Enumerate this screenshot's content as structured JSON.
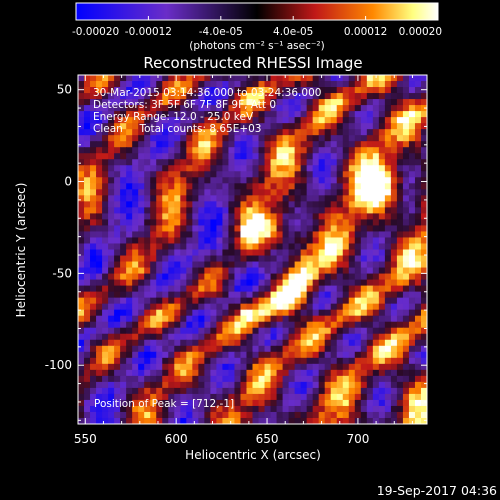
{
  "colorbar": {
    "ticks": [
      "-0.00020",
      "-0.00012",
      "-4.0e-05",
      "4.0e-05",
      "0.00012",
      "0.00020"
    ],
    "tick_values": [
      -0.0002,
      -0.00012,
      -4e-05,
      4e-05,
      0.00012,
      0.0002
    ],
    "range": [
      -0.0002,
      0.0002
    ],
    "units": "(photons cm⁻² s⁻¹ asec⁻²)",
    "colors": [
      "#0000ff",
      "#6a2dc8",
      "#000000",
      "#c01818",
      "#ff8800",
      "#ffff80",
      "#ffffff"
    ]
  },
  "chart_data": {
    "type": "heatmap",
    "title": "Reconstructed RHESSI Image",
    "xlabel": "Heliocentric X (arcsec)",
    "ylabel": "Heliocentric Y (arcsec)",
    "xlim": [
      546,
      738
    ],
    "ylim": [
      -132,
      58
    ],
    "xticks": [
      550,
      600,
      650,
      700
    ],
    "yticks": [
      50,
      0,
      -50,
      -100
    ],
    "annotations": [
      "30-Mar-2015 03:14:36.000 to 03:24:36.000",
      "Detectors: 3F 5F 6F 7F 8F 9F, Att 0",
      "Energy Range: 12.0 - 25.0 keV",
      "Clean     Total counts: 8.65E+03"
    ],
    "peak_label": "Position of Peak = [712,-1]",
    "peak": [
      712,
      -1
    ]
  },
  "footer": {
    "timestamp": "19-Sep-2017 04:36"
  }
}
